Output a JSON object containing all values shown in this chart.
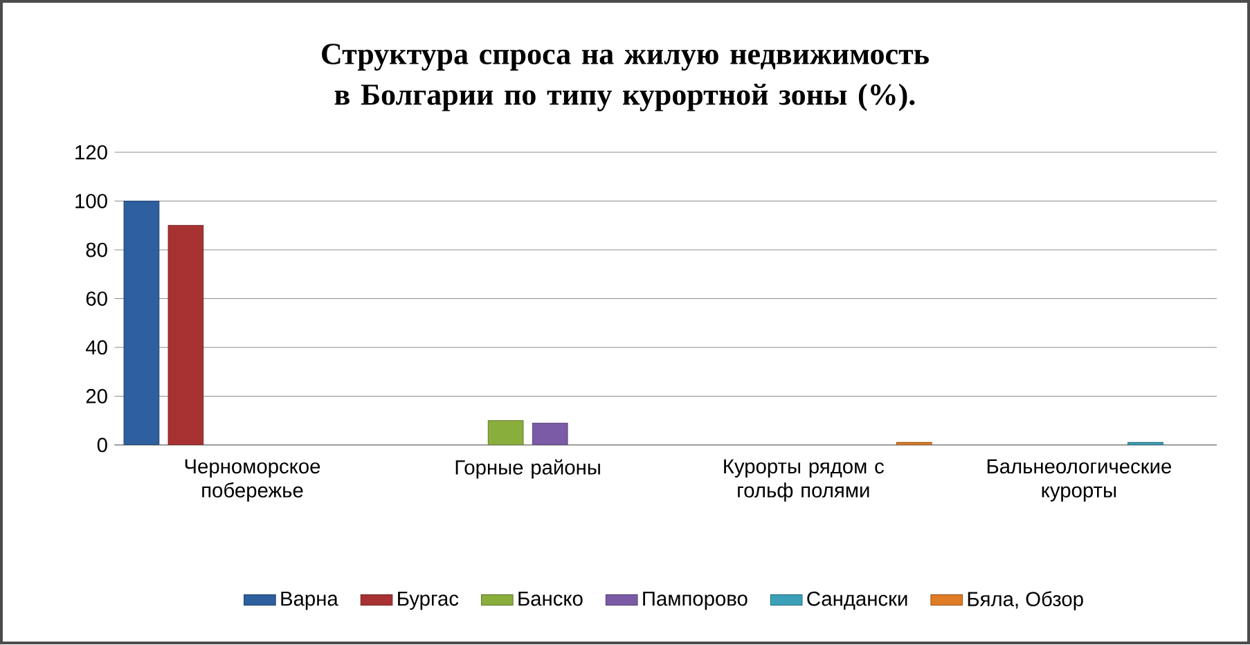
{
  "chart_data": {
    "type": "bar",
    "title": "Структура спроса на жилую недвижимость в Болгарии по типу курортной зоны (%).",
    "categories": [
      "Черноморское побережье",
      "Горные районы",
      "Курорты рядом с гольф полями",
      "Бальнеологические курорты"
    ],
    "series": [
      {
        "name": "Варна",
        "color": "#2e5f9e",
        "values": [
          100,
          null,
          null,
          null
        ]
      },
      {
        "name": "Бургас",
        "color": "#a83232",
        "values": [
          90,
          null,
          null,
          null
        ]
      },
      {
        "name": "Банско",
        "color": "#8aae3c",
        "values": [
          null,
          10,
          null,
          null
        ]
      },
      {
        "name": "Пампорово",
        "color": "#7b5aa6",
        "values": [
          null,
          9,
          null,
          null
        ]
      },
      {
        "name": "Сандански",
        "color": "#3ba0b8",
        "values": [
          null,
          null,
          null,
          1
        ]
      },
      {
        "name": "Бяла, Обзор",
        "color": "#e07b26",
        "values": [
          null,
          null,
          1,
          null
        ]
      }
    ],
    "ylim": [
      0,
      120
    ],
    "yticks": [
      0,
      20,
      40,
      60,
      80,
      100,
      120
    ],
    "grid": "y",
    "legend": "bottom"
  }
}
